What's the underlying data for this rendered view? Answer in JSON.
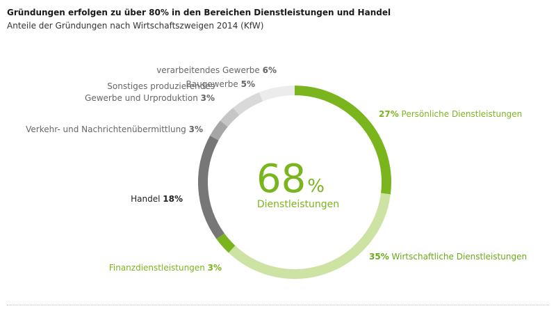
{
  "header": {
    "title": "Gründungen erfolgen zu über 80% in den Bereichen Dienstleistungen und Handel",
    "subtitle": "Anteile der Gründungen nach  Wirtschaftszweigen 2014 (KfW)"
  },
  "chart_data": {
    "type": "pie",
    "title": "Gründungen erfolgen zu über 80% in den Bereichen Dienstleistungen und Handel",
    "subtitle": "Anteile der Gründungen nach  Wirtschaftszweigen 2014 (KfW)",
    "center_value": "68",
    "center_unit": "%",
    "center_label": "Dienstleistungen",
    "slices": [
      {
        "label": "Persönliche Dienstleistungen",
        "value": 27,
        "value_text": "27%",
        "color": "#7ab51d",
        "label_color": "#7ab51d",
        "value_first": true
      },
      {
        "label": "Wirtschaftliche Dienstleistungen",
        "value": 35,
        "value_text": "35%",
        "color": "#cde3a3",
        "label_color": "#6aaa1a",
        "value_first": true
      },
      {
        "label": "Finanzdienstleistungen",
        "value": 3,
        "value_text": "3%",
        "color": "#7ab51d",
        "label_color": "#7ab51d",
        "value_first": false
      },
      {
        "label": "Handel",
        "value": 18,
        "value_text": "18%",
        "color": "#777777",
        "label_color": "#222222",
        "value_first": false
      },
      {
        "label": "Verkehr- und Nachrichtenübermittlung",
        "value": 3,
        "value_text": "3%",
        "color": "#a6a6a6",
        "label_color": "#666666",
        "value_first": false
      },
      {
        "label": [
          "Sonstiges produzierendes",
          "Gewerbe und Urproduktion"
        ],
        "value": 3,
        "value_text": "3%",
        "color": "#c6c6c6",
        "label_color": "#666666",
        "value_first": false
      },
      {
        "label": "Baugewerbe",
        "value": 5,
        "value_text": "5%",
        "color": "#d9d9d9",
        "label_color": "#666666",
        "value_first": false
      },
      {
        "label": "verarbeitendes Gewerbe",
        "value": 6,
        "value_text": "6%",
        "color": "#ececec",
        "label_color": "#666666",
        "value_first": false
      }
    ]
  }
}
